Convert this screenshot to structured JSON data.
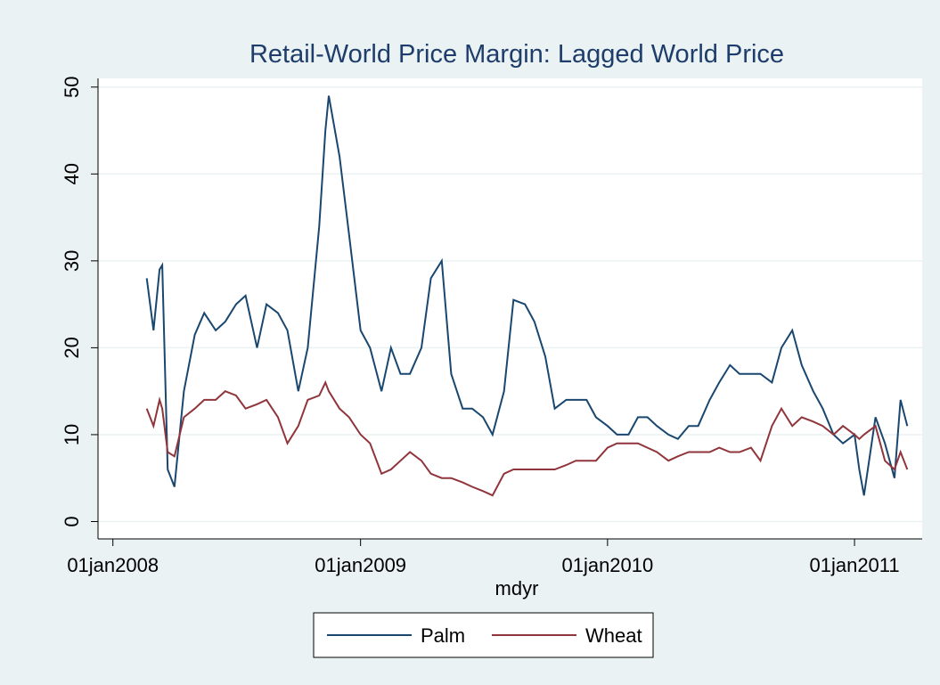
{
  "chart_data": {
    "type": "line",
    "title": "Retail-World Price Margin: Lagged World Price",
    "xlabel": "mdyr",
    "x": [
      "2008-02-20",
      "2008-03-01",
      "2008-03-10",
      "2008-03-14",
      "2008-03-22",
      "2008-04-01",
      "2008-04-15",
      "2008-05-01",
      "2008-05-15",
      "2008-06-01",
      "2008-06-15",
      "2008-07-01",
      "2008-07-15",
      "2008-08-01",
      "2008-08-15",
      "2008-09-01",
      "2008-09-15",
      "2008-10-01",
      "2008-10-15",
      "2008-11-01",
      "2008-11-10",
      "2008-11-15",
      "2008-12-01",
      "2008-12-15",
      "2009-01-01",
      "2009-01-15",
      "2009-02-01",
      "2009-02-15",
      "2009-03-01",
      "2009-03-15",
      "2009-04-01",
      "2009-04-15",
      "2009-05-01",
      "2009-05-15",
      "2009-06-01",
      "2009-06-15",
      "2009-07-01",
      "2009-07-15",
      "2009-08-01",
      "2009-08-15",
      "2009-09-01",
      "2009-09-15",
      "2009-10-01",
      "2009-10-15",
      "2009-11-01",
      "2009-11-15",
      "2009-12-01",
      "2009-12-15",
      "2010-01-01",
      "2010-01-15",
      "2010-02-01",
      "2010-02-15",
      "2010-03-01",
      "2010-03-15",
      "2010-04-01",
      "2010-04-15",
      "2010-05-01",
      "2010-05-15",
      "2010-06-01",
      "2010-06-15",
      "2010-07-01",
      "2010-07-15",
      "2010-08-01",
      "2010-08-15",
      "2010-09-01",
      "2010-09-15",
      "2010-10-01",
      "2010-10-15",
      "2010-11-01",
      "2010-11-15",
      "2010-12-01",
      "2010-12-15",
      "2011-01-01",
      "2011-01-08",
      "2011-01-15",
      "2011-02-01",
      "2011-02-15",
      "2011-03-01",
      "2011-03-10",
      "2011-03-20"
    ],
    "series": [
      {
        "name": "Palm",
        "color": "#1a476f",
        "values": [
          28,
          22,
          29,
          29.5,
          6,
          4,
          15,
          21.5,
          24,
          22,
          23,
          25,
          26,
          20,
          25,
          24,
          22,
          15,
          20,
          34,
          45,
          49,
          42,
          33,
          22,
          20,
          15,
          20,
          17,
          17,
          20,
          28,
          30,
          17,
          13,
          13,
          12,
          10,
          15,
          25.5,
          25,
          23,
          19,
          13,
          14,
          14,
          14,
          12,
          11,
          10,
          10,
          12,
          12,
          11,
          10,
          9.5,
          11,
          11,
          14,
          16,
          18,
          17,
          17,
          17,
          16,
          20,
          22,
          18,
          15,
          13,
          10,
          9,
          10,
          6,
          3,
          12,
          9,
          5,
          14,
          11
        ]
      },
      {
        "name": "Wheat",
        "color": "#90353b",
        "values": [
          13,
          11,
          14,
          13,
          8,
          7.5,
          12,
          13,
          14,
          14,
          15,
          14.5,
          13,
          13.5,
          14,
          12,
          9,
          11,
          14,
          14.5,
          16,
          15,
          13,
          12,
          10,
          9,
          5.5,
          6,
          7,
          8,
          7,
          5.5,
          5,
          5,
          4.5,
          4,
          3.5,
          3,
          5.5,
          6,
          6,
          6,
          6,
          6,
          6.5,
          7,
          7,
          7,
          8.5,
          9,
          9,
          9,
          8.5,
          8,
          7,
          7.5,
          8,
          8,
          8,
          8.5,
          8,
          8,
          8.5,
          7,
          11,
          13,
          11,
          12,
          11.5,
          11,
          10,
          11,
          10,
          9.5,
          10,
          11,
          7,
          6,
          8,
          6
        ]
      }
    ],
    "xlim": [
      "2007-12-10",
      "2011-04-11"
    ],
    "xticks": [
      {
        "value": "2008-01-01",
        "label": "01jan2008"
      },
      {
        "value": "2009-01-01",
        "label": "01jan2009"
      },
      {
        "value": "2010-01-01",
        "label": "01jan2010"
      },
      {
        "value": "2011-01-01",
        "label": "01jan2011"
      }
    ],
    "ylim": [
      -2,
      51
    ],
    "yticks": [
      0,
      10,
      20,
      30,
      40,
      50
    ],
    "grid": true,
    "legend": "bottom"
  }
}
